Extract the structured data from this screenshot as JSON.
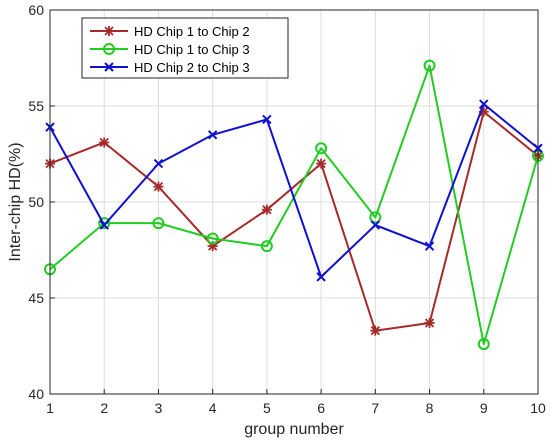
{
  "chart_data": {
    "type": "line",
    "title": "",
    "xlabel": "group number",
    "ylabel": "Inter-chip HD(%)",
    "xlim": [
      1,
      10
    ],
    "ylim": [
      40,
      60
    ],
    "xticks": [
      1,
      2,
      3,
      4,
      5,
      6,
      7,
      8,
      9,
      10
    ],
    "yticks": [
      40,
      45,
      50,
      55,
      60
    ],
    "grid": true,
    "legend_position": "top-left",
    "x": [
      1,
      2,
      3,
      4,
      5,
      6,
      7,
      8,
      9,
      10
    ],
    "series": [
      {
        "name": "HD Chip 1 to Chip 2",
        "color": "#A52A2A",
        "marker": "star",
        "values": [
          52.0,
          53.1,
          50.8,
          47.7,
          49.6,
          52.0,
          43.3,
          43.7,
          54.7,
          52.4
        ]
      },
      {
        "name": "HD Chip 1 to Chip 3",
        "color": "#22CC22",
        "marker": "circle",
        "values": [
          46.5,
          48.9,
          48.9,
          48.1,
          47.7,
          52.8,
          49.2,
          57.1,
          42.6,
          52.4
        ]
      },
      {
        "name": "HD Chip 2 to Chip 3",
        "color": "#1010D0",
        "marker": "x",
        "values": [
          53.9,
          48.8,
          52.0,
          53.5,
          54.3,
          46.1,
          48.8,
          47.7,
          55.1,
          52.8
        ]
      }
    ]
  }
}
